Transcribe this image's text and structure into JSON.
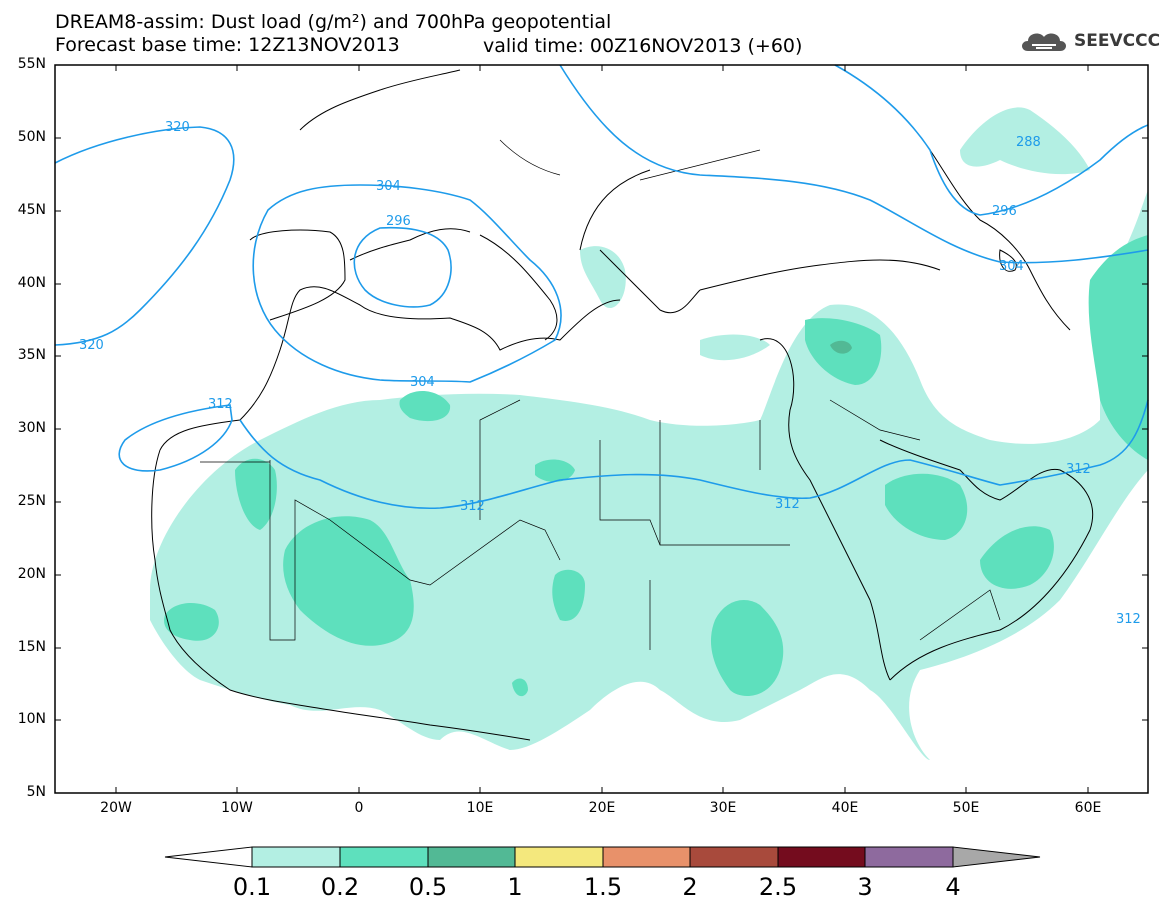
{
  "header": {
    "line1": "DREAM8-assim: Dust load (g/m²) and 700hPa geopotential",
    "line2_left": "Forecast base time: 12Z13NOV2013",
    "line2_right": "valid time: 00Z16NOV2013 (+60)",
    "logo_text": "SEEVCCC"
  },
  "axes": {
    "lat_labels": [
      "55N",
      "50N",
      "45N",
      "40N",
      "35N",
      "30N",
      "25N",
      "20N",
      "15N",
      "10N",
      "5N"
    ],
    "lon_labels": [
      "20W",
      "10W",
      "0",
      "10E",
      "20E",
      "30E",
      "40E",
      "50E",
      "60E"
    ],
    "lat_range": [
      5,
      55
    ],
    "lon_range": [
      -25,
      65
    ]
  },
  "contours": {
    "color": "#1e9bea",
    "labels": [
      "320",
      "320",
      "304",
      "296",
      "304",
      "312",
      "312",
      "312",
      "288",
      "296",
      "304",
      "312",
      "312"
    ]
  },
  "colorbar": {
    "labels": [
      "0.1",
      "0.2",
      "0.5",
      "1",
      "1.5",
      "2",
      "2.5",
      "3",
      "4"
    ],
    "colors": [
      "#b3efe3",
      "#5ee0bd",
      "#52b995",
      "#f4e87d",
      "#e8916a",
      "#a84a3c",
      "#740c1e",
      "#8e6a9e"
    ],
    "under_color": "#ffffff",
    "over_color": "#a8a8a8"
  },
  "dust_colors": {
    "low": "#b3efe3",
    "mid": "#5ee0bd",
    "high": "#52b995"
  }
}
